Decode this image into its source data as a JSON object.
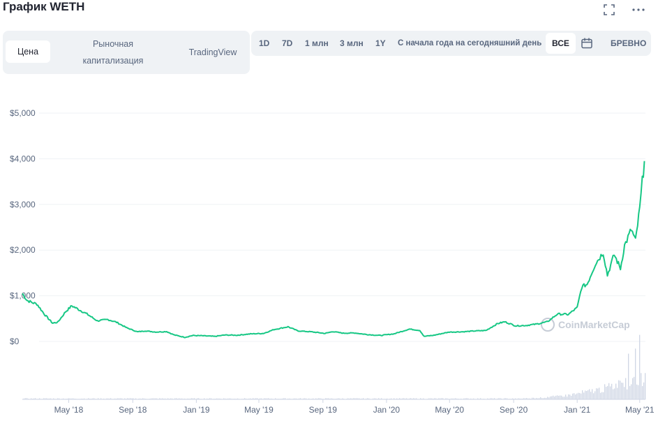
{
  "header": {
    "title": "График WETH",
    "expand_icon": "expand-icon",
    "more_icon": "more-dots-icon"
  },
  "view_tabs": [
    {
      "label": "Цена",
      "active": true
    },
    {
      "label": "Рыночная капитализация",
      "active": false
    },
    {
      "label": "TradingView",
      "active": false
    }
  ],
  "range_tabs": [
    {
      "label": "1D",
      "active": false
    },
    {
      "label": "7D",
      "active": false
    },
    {
      "label": "1 млн",
      "active": false
    },
    {
      "label": "3 млн",
      "active": false
    },
    {
      "label": "1Y",
      "active": false
    },
    {
      "label": "С начала года на сегодняшний день",
      "active": false
    },
    {
      "label": "ВСЕ",
      "active": true
    }
  ],
  "calendar_icon": "calendar-icon",
  "scale_label": "БРЕВНО",
  "watermark": "CoinMarketCap",
  "colors": {
    "line": "#16c784",
    "grid": "#eff2f5",
    "volume": "#cfd6e4",
    "muted": "#58667e"
  },
  "chart_data": {
    "type": "line",
    "y_ticks": [
      "$5,000",
      "$4,000",
      "$3,000",
      "$2,000",
      "$1,000",
      "$0"
    ],
    "x_ticks": [
      "May '18",
      "Sep '18",
      "Jan '19",
      "May '19",
      "Sep '19",
      "Jan '20",
      "May '20",
      "Sep '20",
      "Jan '21",
      "May '21"
    ],
    "ylim": [
      0,
      5000
    ],
    "grid": true,
    "series": [
      {
        "values": [
          {
            "x": "2018-02-01",
            "y": 1050
          },
          {
            "x": "2018-02-10",
            "y": 900
          },
          {
            "x": "2018-02-20",
            "y": 850
          },
          {
            "x": "2018-03-01",
            "y": 820
          },
          {
            "x": "2018-03-15",
            "y": 600
          },
          {
            "x": "2018-03-31",
            "y": 400
          },
          {
            "x": "2018-04-10",
            "y": 420
          },
          {
            "x": "2018-04-25",
            "y": 650
          },
          {
            "x": "2018-05-07",
            "y": 780
          },
          {
            "x": "2018-05-20",
            "y": 700
          },
          {
            "x": "2018-06-05",
            "y": 600
          },
          {
            "x": "2018-06-25",
            "y": 450
          },
          {
            "x": "2018-07-15",
            "y": 480
          },
          {
            "x": "2018-08-01",
            "y": 420
          },
          {
            "x": "2018-08-20",
            "y": 300
          },
          {
            "x": "2018-09-10",
            "y": 210
          },
          {
            "x": "2018-09-25",
            "y": 230
          },
          {
            "x": "2018-10-15",
            "y": 205
          },
          {
            "x": "2018-11-05",
            "y": 215
          },
          {
            "x": "2018-11-20",
            "y": 140
          },
          {
            "x": "2018-12-10",
            "y": 90
          },
          {
            "x": "2018-12-25",
            "y": 130
          },
          {
            "x": "2019-01-10",
            "y": 125
          },
          {
            "x": "2019-02-05",
            "y": 110
          },
          {
            "x": "2019-02-25",
            "y": 140
          },
          {
            "x": "2019-03-20",
            "y": 135
          },
          {
            "x": "2019-04-15",
            "y": 165
          },
          {
            "x": "2019-05-10",
            "y": 175
          },
          {
            "x": "2019-05-30",
            "y": 260
          },
          {
            "x": "2019-06-26",
            "y": 320
          },
          {
            "x": "2019-07-15",
            "y": 230
          },
          {
            "x": "2019-08-10",
            "y": 210
          },
          {
            "x": "2019-09-05",
            "y": 175
          },
          {
            "x": "2019-09-20",
            "y": 215
          },
          {
            "x": "2019-10-10",
            "y": 180
          },
          {
            "x": "2019-11-01",
            "y": 185
          },
          {
            "x": "2019-11-25",
            "y": 150
          },
          {
            "x": "2019-12-20",
            "y": 130
          },
          {
            "x": "2020-01-15",
            "y": 165
          },
          {
            "x": "2020-02-14",
            "y": 270
          },
          {
            "x": "2020-03-05",
            "y": 240
          },
          {
            "x": "2020-03-13",
            "y": 110
          },
          {
            "x": "2020-04-01",
            "y": 135
          },
          {
            "x": "2020-04-30",
            "y": 205
          },
          {
            "x": "2020-05-25",
            "y": 210
          },
          {
            "x": "2020-06-20",
            "y": 230
          },
          {
            "x": "2020-07-10",
            "y": 240
          },
          {
            "x": "2020-08-01",
            "y": 390
          },
          {
            "x": "2020-08-15",
            "y": 430
          },
          {
            "x": "2020-09-05",
            "y": 340
          },
          {
            "x": "2020-09-25",
            "y": 350
          },
          {
            "x": "2020-10-15",
            "y": 380
          },
          {
            "x": "2020-11-05",
            "y": 430
          },
          {
            "x": "2020-11-24",
            "y": 600
          },
          {
            "x": "2020-12-15",
            "y": 590
          },
          {
            "x": "2021-01-01",
            "y": 740
          },
          {
            "x": "2021-01-10",
            "y": 1200
          },
          {
            "x": "2021-01-20",
            "y": 1250
          },
          {
            "x": "2021-02-05",
            "y": 1700
          },
          {
            "x": "2021-02-20",
            "y": 1950
          },
          {
            "x": "2021-02-28",
            "y": 1450
          },
          {
            "x": "2021-03-13",
            "y": 1900
          },
          {
            "x": "2021-03-25",
            "y": 1600
          },
          {
            "x": "2021-04-02",
            "y": 2100
          },
          {
            "x": "2021-04-15",
            "y": 2450
          },
          {
            "x": "2021-04-23",
            "y": 2200
          },
          {
            "x": "2021-05-01",
            "y": 2900
          },
          {
            "x": "2021-05-06",
            "y": 3500
          },
          {
            "x": "2021-05-10",
            "y": 3950
          }
        ]
      }
    ]
  }
}
